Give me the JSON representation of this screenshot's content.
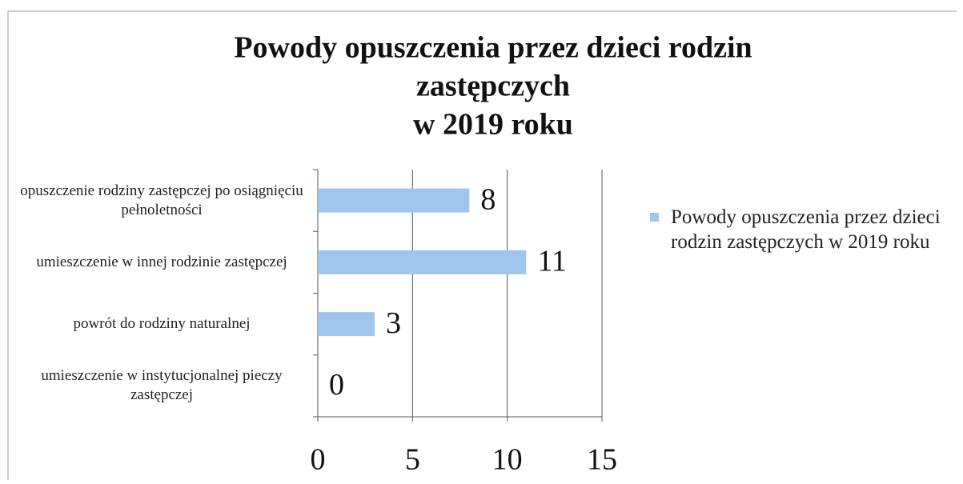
{
  "chart_data": {
    "type": "barh",
    "title": [
      "Powody opuszczenia przez dzieci rodzin",
      "zastępczych",
      "w 2019 roku"
    ],
    "categories": [
      "opuszczenie rodziny zastępczej po osiągnięciu pełnoletności",
      "umieszczenie w innej rodzinie zastępczej",
      "powrót do rodziny naturalnej",
      "umieszczenie w instytucjonalnej pieczy zastępczej"
    ],
    "series": [
      {
        "name": "Powody opuszczenia przez dzieci rodzin zastępczych w 2019 roku",
        "color": "#9fc5ec",
        "values": [
          8,
          11,
          3,
          0
        ]
      }
    ],
    "xlim": [
      0,
      15
    ],
    "xticks": [
      0,
      5,
      10,
      15
    ],
    "grid": true,
    "legend": "right"
  }
}
